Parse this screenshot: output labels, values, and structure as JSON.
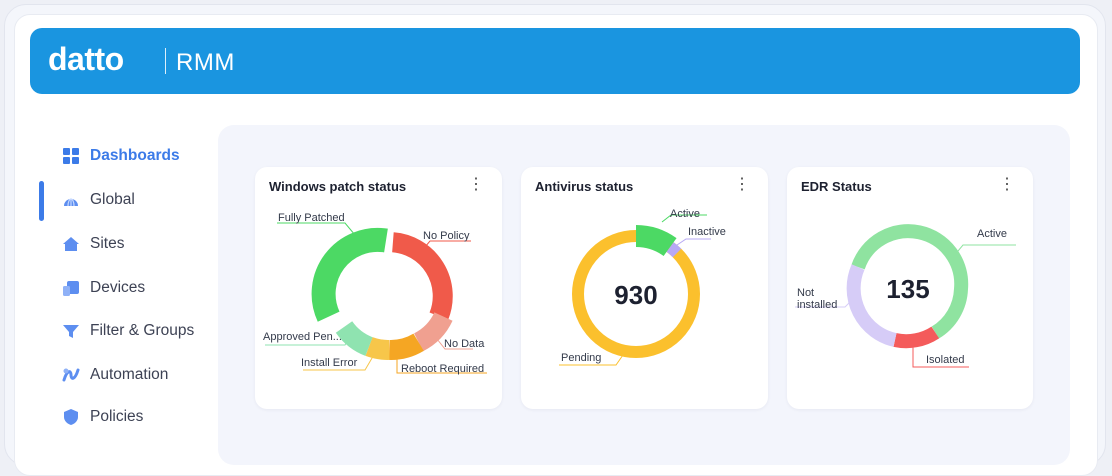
{
  "header": {
    "brand": "datto",
    "product": "RMM"
  },
  "sidebar": {
    "items": [
      {
        "label": "Dashboards",
        "icon": "grid-icon"
      },
      {
        "label": "Global",
        "icon": "globe-icon"
      },
      {
        "label": "Sites",
        "icon": "house-icon"
      },
      {
        "label": "Devices",
        "icon": "devices-icon"
      },
      {
        "label": "Filter & Groups",
        "icon": "filter-icon"
      },
      {
        "label": "Automation",
        "icon": "automation-icon"
      },
      {
        "label": "Policies",
        "icon": "shield-icon"
      }
    ]
  },
  "widgets": {
    "patch": {
      "title": "Windows patch status",
      "labels": {
        "fully_patched": "Fully Patched",
        "no_policy": "No Policy",
        "no_data": "No Data",
        "reboot_required": "Reboot Required",
        "install_error": "Install Error",
        "approved_pending": "Approved Pen..."
      }
    },
    "antivirus": {
      "title": "Antivirus status",
      "total": "930",
      "labels": {
        "active": "Active",
        "inactive": "Inactive",
        "pending": "Pending"
      }
    },
    "edr": {
      "title": "EDR Status",
      "total": "135",
      "labels": {
        "active": "Active",
        "not_installed_1": "Not",
        "not_installed_2": "installed",
        "isolated": "Isolated"
      }
    }
  },
  "colors": {
    "brand_blue": "#1a95e0",
    "accent": "#3c7be8",
    "fully_patched": "#4cd964",
    "no_policy": "#f05a4a",
    "no_data": "#f0a090",
    "reboot_required": "#f5a623",
    "install_error": "#f7c64a",
    "approved_pending": "#8fe3b0",
    "av_pending": "#fbc02d",
    "av_active": "#4cd964",
    "av_inactive": "#b7a8f5",
    "edr_active": "#8fe3a0",
    "edr_isolated": "#f45b5b",
    "edr_not_installed": "#d6ccf7"
  }
}
